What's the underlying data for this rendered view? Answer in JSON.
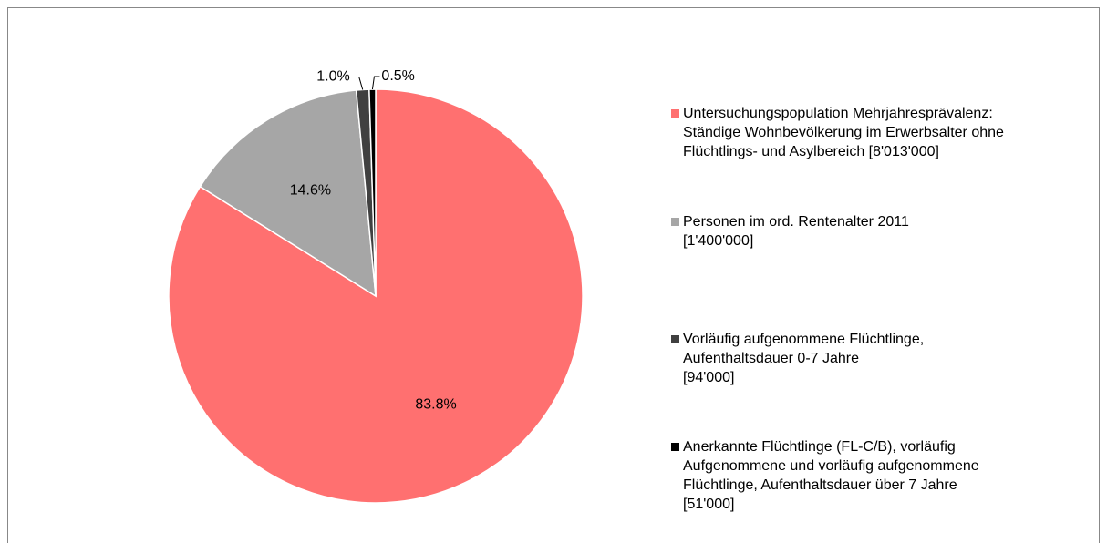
{
  "chart_data": {
    "type": "pie",
    "categories": [
      "Untersuchungspopulation Mehrjahresprävalenz:\nStändige Wohnbevölkerung im Erwerbsalter ohne\nFlüchtlings- und Asylbereich [8'013'000]",
      "Personen im  ord. Rentenalter 2011\n[1'400'000]",
      "Vorläufig aufgenommene Flüchtlinge,\nAufenthaltsdauer 0-7 Jahre\n[94'000]",
      "Anerkannte Flüchtlinge (FL-C/B), vorläufig\nAufgenommene und vorläufig aufgenommene\nFlüchtlinge, Aufenthaltsdauer über 7 Jahre\n[51'000]"
    ],
    "values": [
      83.8,
      14.6,
      1.0,
      0.5
    ],
    "value_labels": [
      "83.8%",
      "14.6%",
      "1.0%",
      "0.5%"
    ],
    "colors": [
      "#ff7070",
      "#a6a6a6",
      "#404040",
      "#000000"
    ],
    "legend": "right"
  }
}
